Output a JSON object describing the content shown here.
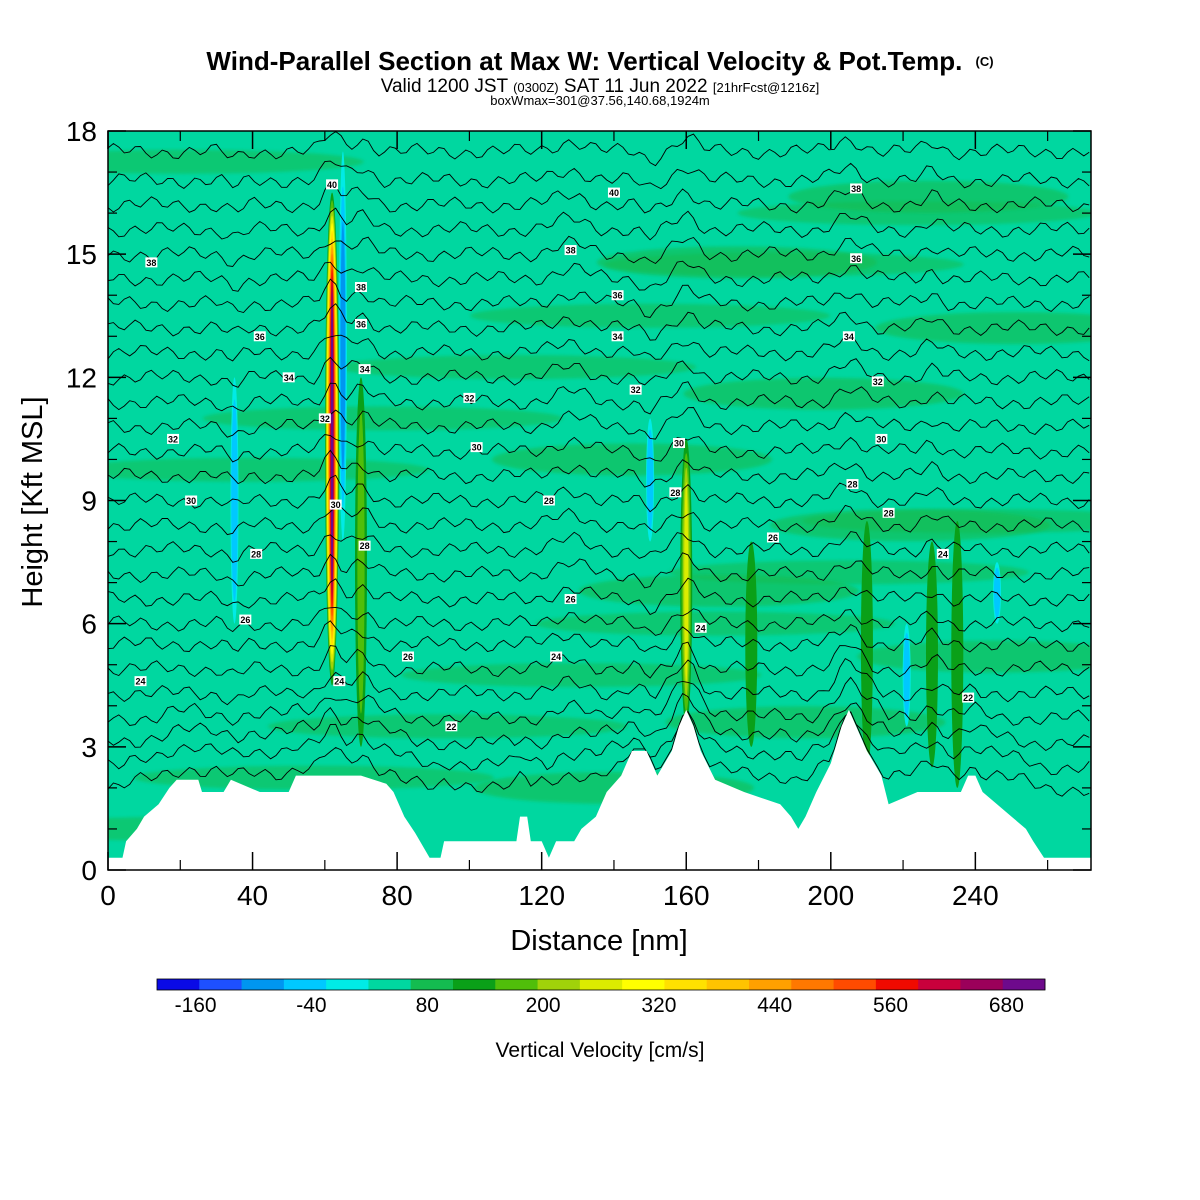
{
  "title": {
    "main": "Wind-Parallel Section at Max W: Vertical Velocity & Pot.Temp.",
    "copyright": "(C)",
    "valid_prefix": "Valid 1200 JST",
    "valid_zulu": "(0300Z)",
    "valid_date": "SAT 11 Jun 2022",
    "forecast": "[21hrFcst@1216z]",
    "boxline": "boxWmax=301@37.56,140.68,1924m"
  },
  "chart_data": {
    "type": "heatmap",
    "xlabel": "Distance [nm]",
    "ylabel": "Height [Kft MSL]",
    "xlim": [
      0,
      272
    ],
    "ylim": [
      0,
      18
    ],
    "xticks": [
      0,
      40,
      80,
      120,
      160,
      200,
      240
    ],
    "yticks": [
      0,
      3,
      6,
      9,
      12,
      15,
      18
    ],
    "colorbar": {
      "label": "Vertical Velocity [cm/s]",
      "min": -200,
      "max": 720,
      "step": 40,
      "tick_values": [
        -160,
        -40,
        80,
        200,
        320,
        440,
        560,
        680
      ],
      "colors": [
        "#0a0ae6",
        "#1e50ff",
        "#0096f0",
        "#00c8ff",
        "#00ebe6",
        "#00d7a0",
        "#14bc50",
        "#0aa018",
        "#50be0a",
        "#a0d20a",
        "#dcec00",
        "#ffff00",
        "#ffe100",
        "#ffc300",
        "#ffa000",
        "#ff7800",
        "#ff4b00",
        "#f00a00",
        "#c8003c",
        "#9b005a",
        "#6e0a8c"
      ]
    },
    "background_value": 40,
    "updrafts": [
      {
        "x": 62,
        "y_bottom": 4.5,
        "y_top": 16.5,
        "w_max": 600
      },
      {
        "x": 70,
        "y_bottom": 3.0,
        "y_top": 12.0,
        "w_max": 120
      },
      {
        "x": 160,
        "y_bottom": 3.5,
        "y_top": 10.5,
        "w_max": 200
      },
      {
        "x": 178,
        "y_bottom": 3.0,
        "y_top": 8.0,
        "w_max": 100
      },
      {
        "x": 210,
        "y_bottom": 2.5,
        "y_top": 8.5,
        "w_max": 100
      },
      {
        "x": 228,
        "y_bottom": 2.5,
        "y_top": 8.0,
        "w_max": 100
      },
      {
        "x": 235,
        "y_bottom": 2.0,
        "y_top": 8.5,
        "w_max": 100
      }
    ],
    "downdrafts": [
      {
        "x": 35,
        "y_bottom": 6.0,
        "y_top": 12.0,
        "w_min": -80
      },
      {
        "x": 65,
        "y_bottom": 8.0,
        "y_top": 17.5,
        "w_min": -120
      },
      {
        "x": 150,
        "y_bottom": 8.0,
        "y_top": 11.0,
        "w_min": -80
      },
      {
        "x": 221,
        "y_bottom": 3.5,
        "y_top": 6.0,
        "w_min": -80
      },
      {
        "x": 246,
        "y_bottom": 6.0,
        "y_top": 7.5,
        "w_min": -80
      }
    ],
    "terrain": [
      [
        0,
        0.3
      ],
      [
        4,
        0.3
      ],
      [
        5,
        0.7
      ],
      [
        8,
        1.0
      ],
      [
        10,
        1.3
      ],
      [
        14,
        1.6
      ],
      [
        17,
        2.0
      ],
      [
        19,
        2.2
      ],
      [
        25,
        2.2
      ],
      [
        26,
        1.9
      ],
      [
        32,
        1.9
      ],
      [
        34,
        2.2
      ],
      [
        42,
        1.9
      ],
      [
        50,
        1.9
      ],
      [
        52,
        2.3
      ],
      [
        70,
        2.3
      ],
      [
        77,
        2.1
      ],
      [
        79,
        1.9
      ],
      [
        82,
        1.3
      ],
      [
        85,
        0.9
      ],
      [
        89,
        0.3
      ],
      [
        92,
        0.3
      ],
      [
        93,
        0.7
      ],
      [
        113,
        0.7
      ],
      [
        114,
        1.3
      ],
      [
        116,
        1.3
      ],
      [
        117,
        0.7
      ],
      [
        120,
        0.7
      ],
      [
        122,
        0.3
      ],
      [
        124,
        0.7
      ],
      [
        129,
        0.7
      ],
      [
        131,
        1.0
      ],
      [
        135,
        1.3
      ],
      [
        138,
        1.9
      ],
      [
        142,
        2.3
      ],
      [
        145,
        2.9
      ],
      [
        149,
        2.9
      ],
      [
        152,
        2.3
      ],
      [
        156,
        2.9
      ],
      [
        158,
        3.5
      ],
      [
        160,
        3.9
      ],
      [
        162,
        3.5
      ],
      [
        164,
        2.9
      ],
      [
        168,
        2.2
      ],
      [
        176,
        1.9
      ],
      [
        186,
        1.6
      ],
      [
        189,
        1.3
      ],
      [
        191,
        1.0
      ],
      [
        193,
        1.3
      ],
      [
        196,
        1.9
      ],
      [
        200,
        2.6
      ],
      [
        203,
        3.5
      ],
      [
        205,
        3.9
      ],
      [
        207,
        3.5
      ],
      [
        210,
        2.9
      ],
      [
        214,
        2.3
      ],
      [
        216,
        1.6
      ],
      [
        224,
        1.9
      ],
      [
        236,
        1.9
      ],
      [
        238,
        2.3
      ],
      [
        240,
        2.3
      ],
      [
        242,
        1.9
      ],
      [
        246,
        1.6
      ],
      [
        250,
        1.3
      ],
      [
        254,
        1.0
      ],
      [
        256,
        0.7
      ],
      [
        259,
        0.3
      ],
      [
        272,
        0.3
      ]
    ],
    "theta_contours": [
      {
        "y": 1.8,
        "label": ""
      },
      {
        "y": 2.5,
        "label": ""
      },
      {
        "y": 3.1,
        "label": "22"
      },
      {
        "y": 3.7,
        "label": ""
      },
      {
        "y": 4.3,
        "label": "24"
      },
      {
        "y": 4.9,
        "label": ""
      },
      {
        "y": 5.5,
        "label": "26"
      },
      {
        "y": 6.0,
        "label": ""
      },
      {
        "y": 6.6,
        "label": "26"
      },
      {
        "y": 7.2,
        "label": "24"
      },
      {
        "y": 7.8,
        "label": "28"
      },
      {
        "y": 8.4,
        "label": ""
      },
      {
        "y": 9.0,
        "label": "30"
      },
      {
        "y": 9.6,
        "label": "28"
      },
      {
        "y": 10.2,
        "label": "30"
      },
      {
        "y": 10.8,
        "label": "32"
      },
      {
        "y": 11.4,
        "label": ""
      },
      {
        "y": 12.0,
        "label": "34"
      },
      {
        "y": 12.6,
        "label": ""
      },
      {
        "y": 13.2,
        "label": "34"
      },
      {
        "y": 13.8,
        "label": "36"
      },
      {
        "y": 14.4,
        "label": ""
      },
      {
        "y": 15.0,
        "label": "38"
      },
      {
        "y": 15.6,
        "label": ""
      },
      {
        "y": 16.2,
        "label": ""
      },
      {
        "y": 16.8,
        "label": "40"
      },
      {
        "y": 17.5,
        "label": ""
      }
    ],
    "contour_labels": [
      {
        "x": 12,
        "y": 14.8,
        "text": "38"
      },
      {
        "x": 42,
        "y": 13.0,
        "text": "36"
      },
      {
        "x": 50,
        "y": 12.0,
        "text": "34"
      },
      {
        "x": 18,
        "y": 10.5,
        "text": "32"
      },
      {
        "x": 23,
        "y": 9.0,
        "text": "30"
      },
      {
        "x": 41,
        "y": 7.7,
        "text": "28"
      },
      {
        "x": 38,
        "y": 6.1,
        "text": "26"
      },
      {
        "x": 9,
        "y": 4.6,
        "text": "24"
      },
      {
        "x": 62,
        "y": 16.7,
        "text": "40"
      },
      {
        "x": 70,
        "y": 14.2,
        "text": "38"
      },
      {
        "x": 70,
        "y": 13.3,
        "text": "36"
      },
      {
        "x": 71,
        "y": 12.2,
        "text": "34"
      },
      {
        "x": 60,
        "y": 11.0,
        "text": "32"
      },
      {
        "x": 63,
        "y": 8.9,
        "text": "30"
      },
      {
        "x": 71,
        "y": 7.9,
        "text": "28"
      },
      {
        "x": 64,
        "y": 4.6,
        "text": "24"
      },
      {
        "x": 83,
        "y": 5.2,
        "text": "26"
      },
      {
        "x": 95,
        "y": 3.5,
        "text": "22"
      },
      {
        "x": 100,
        "y": 11.5,
        "text": "32"
      },
      {
        "x": 102,
        "y": 10.3,
        "text": "30"
      },
      {
        "x": 122,
        "y": 9.0,
        "text": "28"
      },
      {
        "x": 128,
        "y": 6.6,
        "text": "26"
      },
      {
        "x": 124,
        "y": 5.2,
        "text": "24"
      },
      {
        "x": 140,
        "y": 16.5,
        "text": "40"
      },
      {
        "x": 128,
        "y": 15.1,
        "text": "38"
      },
      {
        "x": 141,
        "y": 14.0,
        "text": "36"
      },
      {
        "x": 141,
        "y": 13.0,
        "text": "34"
      },
      {
        "x": 146,
        "y": 11.7,
        "text": "32"
      },
      {
        "x": 158,
        "y": 10.4,
        "text": "30"
      },
      {
        "x": 157,
        "y": 9.2,
        "text": "28"
      },
      {
        "x": 164,
        "y": 5.9,
        "text": "24"
      },
      {
        "x": 207,
        "y": 16.6,
        "text": "38"
      },
      {
        "x": 207,
        "y": 14.9,
        "text": "36"
      },
      {
        "x": 205,
        "y": 13.0,
        "text": "34"
      },
      {
        "x": 213,
        "y": 11.9,
        "text": "32"
      },
      {
        "x": 214,
        "y": 10.5,
        "text": "30"
      },
      {
        "x": 206,
        "y": 9.4,
        "text": "28"
      },
      {
        "x": 216,
        "y": 8.7,
        "text": "28"
      },
      {
        "x": 184,
        "y": 8.1,
        "text": "26"
      },
      {
        "x": 231,
        "y": 7.7,
        "text": "24"
      },
      {
        "x": 238,
        "y": 4.2,
        "text": "22"
      }
    ]
  }
}
